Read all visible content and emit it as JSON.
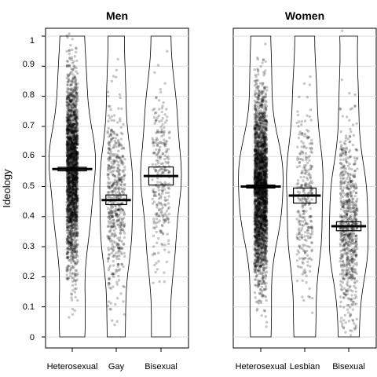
{
  "chart_data": {
    "type": "violin",
    "ylabel": "Ideology",
    "ylim": [
      -0.04,
      1.04
    ],
    "yticks": [
      "0",
      "0.1",
      "0.2",
      "0.3",
      "0.4",
      "0.5",
      "0.6",
      "0.7",
      "0.8",
      "0.9",
      "1"
    ],
    "grid": true,
    "colors": {
      "points": "#000000",
      "outline": "#000000",
      "grid": "#dddddd"
    },
    "panels": [
      {
        "title": "Men",
        "groups": [
          {
            "label": "Heterosexual",
            "mean": 0.558,
            "ci": [
              0.552,
              0.564
            ],
            "relative_density": "very high"
          },
          {
            "label": "Gay",
            "mean": 0.455,
            "ci": [
              0.44,
              0.472
            ],
            "relative_density": "medium"
          },
          {
            "label": "Bisexual",
            "mean": 0.535,
            "ci": [
              0.505,
              0.565
            ],
            "relative_density": "low"
          }
        ]
      },
      {
        "title": "Women",
        "groups": [
          {
            "label": "Heterosexual",
            "mean": 0.5,
            "ci": [
              0.495,
              0.505
            ],
            "relative_density": "very high"
          },
          {
            "label": "Lesbian",
            "mean": 0.47,
            "ci": [
              0.445,
              0.495
            ],
            "relative_density": "low"
          },
          {
            "label": "Bisexual",
            "mean": 0.368,
            "ci": [
              0.353,
              0.383
            ],
            "relative_density": "medium"
          }
        ]
      }
    ]
  }
}
